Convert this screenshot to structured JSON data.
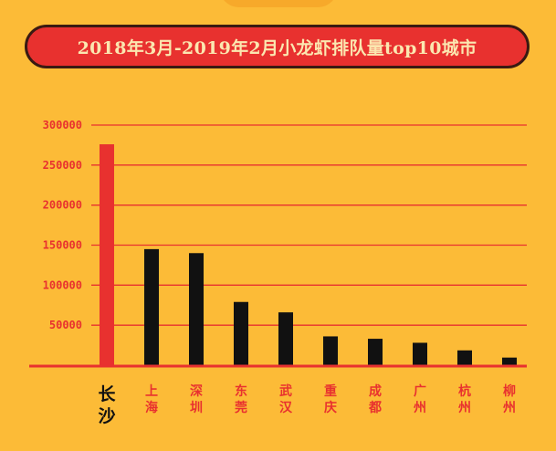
{
  "title": "2018年3月-2019年2月小龙虾排队量top10城市",
  "colors": {
    "background": "#fcbb37",
    "banner": "#e8312f",
    "banner_border": "#3a1a12",
    "title_text": "#fbe7b0",
    "highlight_bar": "#e8312f",
    "bar": "#111111",
    "gridline": "#e8312f",
    "axis": "#e8312f",
    "highlight_label": "#111111",
    "label": "#e8312f"
  },
  "chart_data": {
    "type": "bar",
    "title": "2018年3月-2019年2月小龙虾排队量top10城市",
    "categories": [
      "长沙",
      "上海",
      "深圳",
      "东莞",
      "武汉",
      "重庆",
      "成都",
      "广州",
      "杭州",
      "柳州"
    ],
    "values": [
      276000,
      145000,
      140000,
      79000,
      66000,
      36000,
      33000,
      28000,
      18500,
      9500
    ],
    "highlight_index": 0,
    "y_ticks": [
      300000,
      250000,
      200000,
      150000,
      100000,
      50000
    ],
    "ylim": [
      0,
      300000
    ],
    "xlabel": "",
    "ylabel": "",
    "grid": true,
    "legend": "none"
  }
}
